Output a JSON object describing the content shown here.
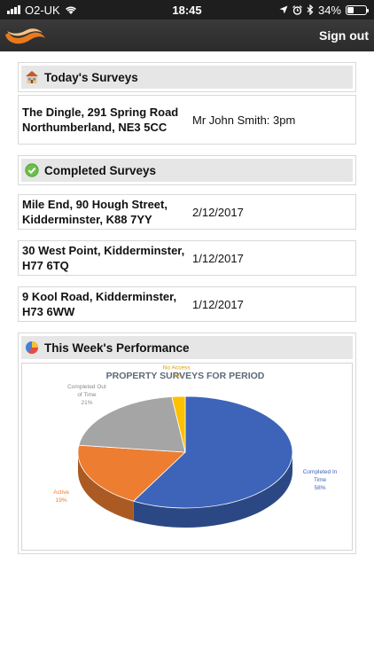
{
  "status_bar": {
    "carrier": "O2-UK",
    "time": "18:45",
    "battery": "34%"
  },
  "nav": {
    "sign_out_label": "Sign out"
  },
  "todays_surveys": {
    "title": "Today's Surveys",
    "items": [
      {
        "address": "The Dingle, 291 Spring Road Northumberland, NE3 5CC",
        "info": "Mr John Smith: 3pm"
      }
    ]
  },
  "completed_surveys": {
    "title": "Completed Surveys",
    "items": [
      {
        "address": "Mile End, 90 Hough Street, Kidderminster, K88 7YY",
        "date": "2/12/2017"
      },
      {
        "address": "30 West Point, Kidderminster, H77 6TQ",
        "date": "1/12/2017"
      },
      {
        "address": "9 Kool Road, Kidderminster, H73 6WW",
        "date": "1/12/2017"
      }
    ]
  },
  "performance": {
    "title": "This Week's Performance"
  },
  "chart_data": {
    "type": "pie",
    "title": "PROPERTY SURVEYS FOR PERIOD",
    "slices": [
      {
        "label": "Completed In Time",
        "value": 58,
        "value_label": "58%",
        "color": "#3d64b8"
      },
      {
        "label": "Active",
        "value": 19,
        "value_label": "19%",
        "color": "#ed7d31"
      },
      {
        "label": "Completed Out of Time",
        "value": 21,
        "value_label": "21%",
        "color": "#a5a5a5"
      },
      {
        "label": "No Access",
        "value": 2,
        "value_label": "2%",
        "color": "#ffc000"
      }
    ]
  }
}
